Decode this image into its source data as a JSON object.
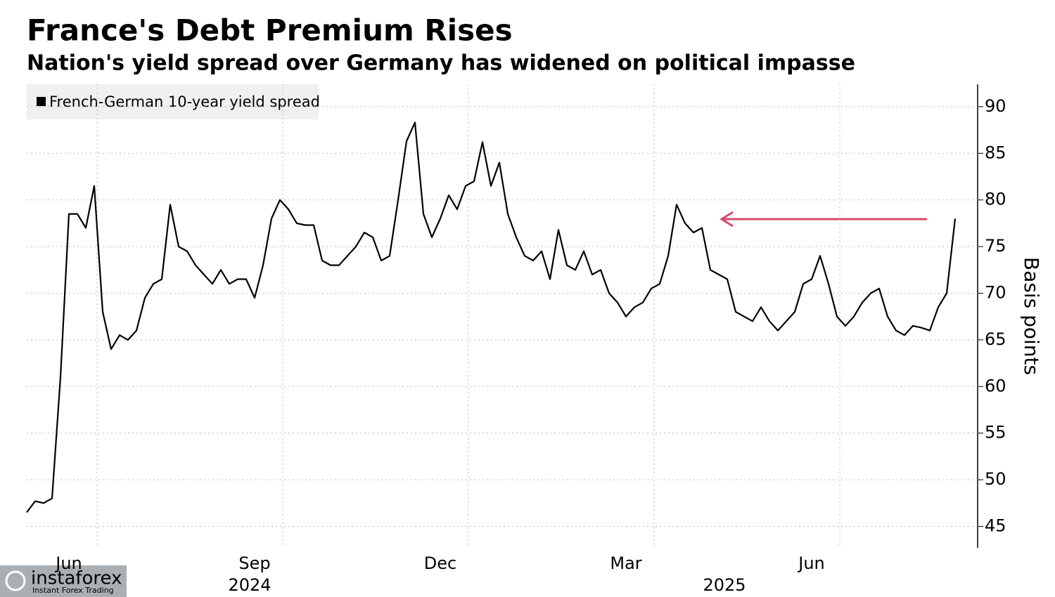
{
  "chart_data": {
    "type": "line",
    "title": "France's Debt Premium Rises",
    "subtitle": "Nation's yield spread over Germany has widened on political impasse",
    "y_axis_label": "Basis points",
    "categories": [
      null,
      null,
      null,
      null,
      null,
      "Jun",
      null,
      null,
      null,
      null,
      null,
      null,
      null,
      null,
      null,
      null,
      null,
      null,
      null,
      null,
      null,
      null,
      null,
      null,
      null,
      null,
      null,
      "Sep",
      null,
      null,
      null,
      null,
      null,
      null,
      null,
      null,
      null,
      null,
      null,
      null,
      null,
      null,
      null,
      null,
      null,
      null,
      null,
      null,
      null,
      "Dec",
      null,
      null,
      null,
      null,
      null,
      null,
      null,
      null,
      null,
      null,
      null,
      null,
      null,
      null,
      null,
      null,
      null,
      null,
      null,
      null,
      null,
      "Mar",
      null,
      null,
      null,
      null,
      null,
      null,
      null,
      null,
      null,
      null,
      null,
      null,
      null,
      null,
      null,
      null,
      null,
      null,
      null,
      null,
      null,
      "Jun",
      null,
      null,
      null,
      null,
      null,
      null,
      null,
      null,
      null,
      null,
      null,
      null,
      null,
      null,
      null,
      null,
      null
    ],
    "x_group_labels": [
      "2024",
      "2025"
    ],
    "series": [
      {
        "name": "French-German 10-year yield spread",
        "color": "#000000",
        "values": [
          46.5,
          47.7,
          47.5,
          48,
          61,
          78.5,
          78.5,
          77,
          81.5,
          68,
          64,
          65.5,
          65,
          66,
          69.5,
          71,
          71.5,
          79.5,
          75,
          74.5,
          73,
          72,
          71,
          72.5,
          71,
          71.5,
          71.5,
          69.5,
          73,
          78,
          80,
          79,
          77.5,
          77.3,
          77.3,
          73.5,
          73,
          73,
          74,
          75,
          76.5,
          76,
          73.5,
          74,
          80,
          86.3,
          88.3,
          78.5,
          76,
          78,
          80.5,
          79,
          81.5,
          82,
          86.2,
          81.5,
          84,
          78.5,
          76,
          74,
          73.5,
          74.5,
          71.5,
          76.8,
          73,
          72.5,
          74.5,
          72,
          72.5,
          70,
          69,
          67.5,
          68.5,
          69,
          70.5,
          71,
          74,
          79.5,
          77.5,
          76.5,
          77,
          72.5,
          72,
          71.5,
          68,
          67.5,
          67,
          68.5,
          67,
          66,
          67,
          68,
          71,
          71.5,
          74,
          71,
          67.5,
          66.5,
          67.5,
          69,
          70,
          70.5,
          67.5,
          66,
          65.5,
          66.5,
          66.3,
          66,
          68.5,
          70,
          78
        ]
      }
    ],
    "ylim": [
      42.7,
      92.4
    ],
    "yticks": [
      45,
      50,
      55,
      60,
      65,
      70,
      75,
      80,
      85,
      90
    ],
    "grid": true,
    "legend": "top-left",
    "watermark": {
      "name": "instaforex",
      "tagline": "Instant Forex Trading"
    }
  }
}
